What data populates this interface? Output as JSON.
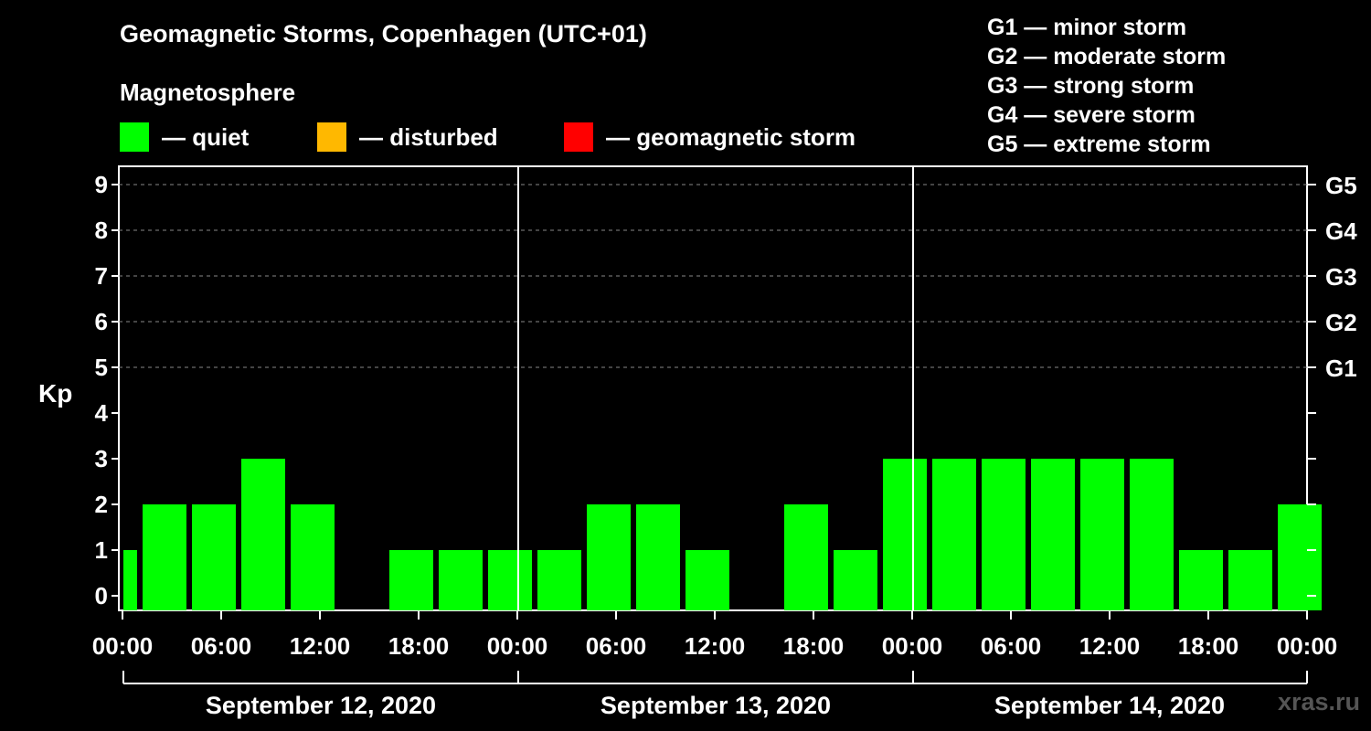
{
  "title": "Geomagnetic Storms, Copenhagen (UTC+01)",
  "subtitle": "Magnetosphere",
  "legend": [
    {
      "label": "— quiet",
      "color": "#00ff00"
    },
    {
      "label": "— disturbed",
      "color": "#ffb800"
    },
    {
      "label": "— geomagnetic storm",
      "color": "#ff0000"
    }
  ],
  "storm_scale": [
    "G1 — minor storm",
    "G2 — moderate storm",
    "G3 — strong storm",
    "G4 — severe storm",
    "G5 — extreme storm"
  ],
  "source": "xras.ru",
  "chart_data": {
    "type": "bar",
    "ylabel": "Kp",
    "ylim": [
      0,
      9
    ],
    "yticks": [
      0,
      1,
      2,
      3,
      4,
      5,
      6,
      7,
      8,
      9
    ],
    "right_ticks": [
      {
        "value": 5,
        "label": "G1"
      },
      {
        "value": 6,
        "label": "G2"
      },
      {
        "value": 7,
        "label": "G3"
      },
      {
        "value": 8,
        "label": "G4"
      },
      {
        "value": 9,
        "label": "G5"
      }
    ],
    "x_tick_labels": [
      "00:00",
      "06:00",
      "12:00",
      "18:00",
      "00:00",
      "06:00",
      "12:00",
      "18:00",
      "00:00",
      "06:00",
      "12:00",
      "18:00",
      "00:00"
    ],
    "days": [
      "September 12, 2020",
      "September 13, 2020",
      "September 14, 2020"
    ],
    "grid": "dashed horizontal at Kp 5-9",
    "series": [
      {
        "values": [
          1,
          2,
          2,
          3,
          2,
          0,
          1,
          1,
          1,
          1,
          2,
          2,
          1,
          0,
          2,
          1,
          3,
          3,
          3,
          3,
          3,
          3,
          1,
          1,
          2
        ],
        "color": "#00ff00"
      }
    ]
  }
}
